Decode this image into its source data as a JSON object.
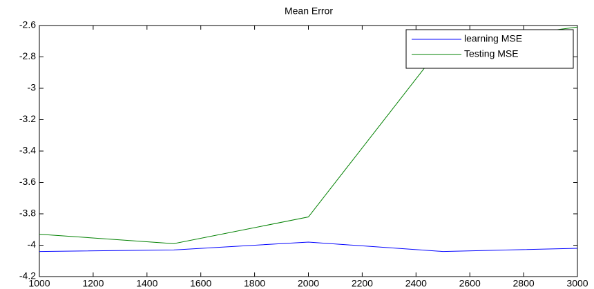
{
  "chart_data": {
    "type": "line",
    "title": "Mean Error",
    "x": [
      1000,
      1500,
      2000,
      2500,
      3000
    ],
    "series": [
      {
        "name": "learning MSE",
        "color": "#0000ff",
        "values": [
          -4.04,
          -4.03,
          -3.98,
          -4.04,
          -4.02
        ]
      },
      {
        "name": "Testing MSE",
        "color": "#008000",
        "values": [
          -3.93,
          -3.99,
          -3.82,
          -2.72,
          -2.61
        ]
      }
    ],
    "xlim": [
      1000,
      3000
    ],
    "xticks": [
      1000,
      1200,
      1400,
      1600,
      1800,
      2000,
      2200,
      2400,
      2600,
      2800,
      3000
    ],
    "ylim": [
      -4.2,
      -2.6
    ],
    "yticks": [
      -4.2,
      -4,
      -3.8,
      -3.6,
      -3.4,
      -3.2,
      -3,
      -2.8,
      -2.6
    ],
    "grid": false,
    "legend": "top-right"
  }
}
